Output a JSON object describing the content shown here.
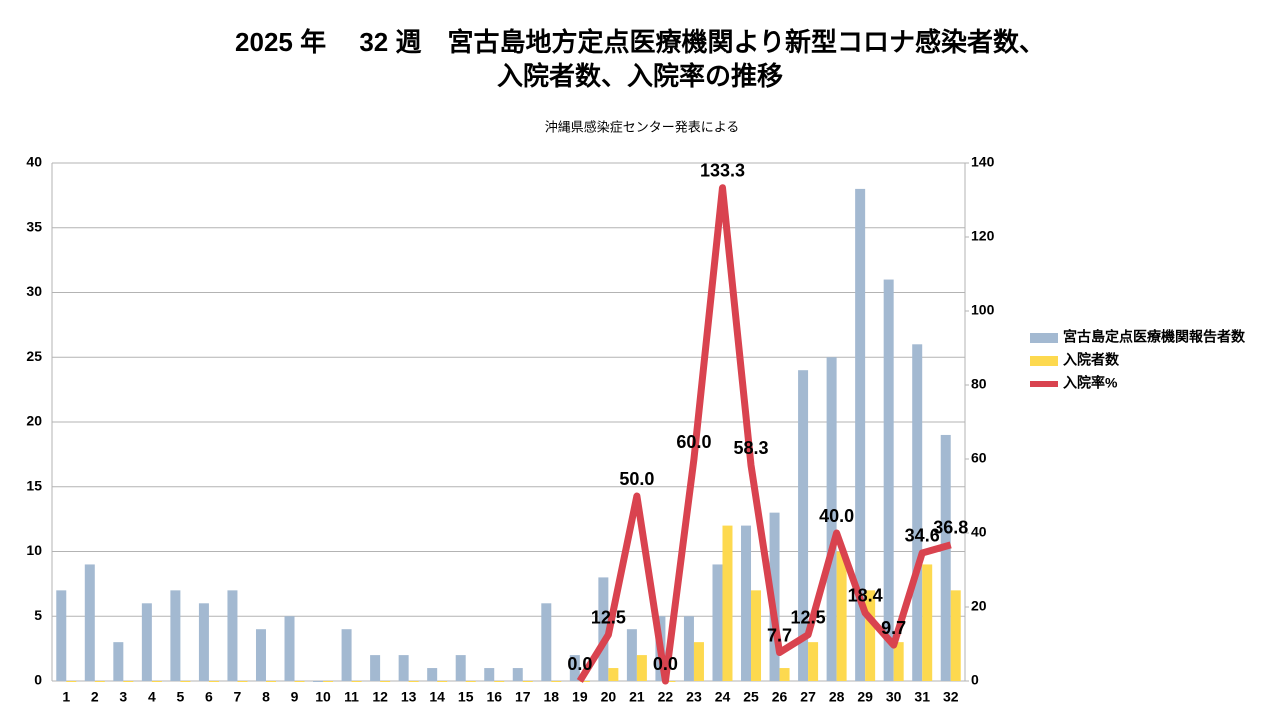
{
  "chart_data": {
    "type": "bar_line",
    "title": [
      "2025 年　 32 週　宮古島地方定点医療機関より新型コロナ感染者数、",
      "入院者数、入院率の推移"
    ],
    "subtitle": "沖縄県感染症センター発表による",
    "categories": [
      "1",
      "2",
      "3",
      "4",
      "5",
      "6",
      "7",
      "8",
      "9",
      "10",
      "11",
      "12",
      "13",
      "14",
      "15",
      "16",
      "17",
      "18",
      "19",
      "20",
      "21",
      "22",
      "23",
      "24",
      "25",
      "26",
      "27",
      "28",
      "29",
      "30",
      "31",
      "32"
    ],
    "series": [
      {
        "name": "宮古島定点医療機関報告者数",
        "color": "#a3b9d1",
        "kind": "bar",
        "values": [
          7,
          9,
          3,
          6,
          7,
          6,
          7,
          4,
          5,
          0,
          4,
          2,
          2,
          1,
          2,
          1,
          1,
          6,
          2,
          8,
          4,
          5,
          5,
          9,
          12,
          13,
          24,
          25,
          38,
          31,
          26,
          19
        ]
      },
      {
        "name": "入院者数",
        "color": "#fdd94f",
        "kind": "bar",
        "values": [
          0,
          0,
          0,
          0,
          0,
          0,
          0,
          0,
          0,
          0,
          0,
          0,
          0,
          0,
          0,
          0,
          0,
          0,
          0,
          1,
          2,
          0,
          3,
          12,
          7,
          1,
          3,
          10,
          7,
          3,
          9,
          7
        ]
      },
      {
        "name": "入院率%",
        "color": "#d9434f",
        "kind": "line",
        "axis": "y2",
        "values": [
          null,
          null,
          null,
          null,
          null,
          null,
          null,
          null,
          null,
          null,
          null,
          null,
          null,
          null,
          null,
          null,
          null,
          null,
          0,
          12.5,
          50,
          0,
          60,
          133.3,
          58.3,
          7.7,
          12.5,
          40,
          18.4,
          9.7,
          34.6,
          36.8
        ],
        "value_labels": [
          null,
          null,
          null,
          null,
          null,
          null,
          null,
          null,
          null,
          null,
          null,
          null,
          null,
          null,
          null,
          null,
          null,
          null,
          "0.0",
          "12.5",
          "50.0",
          "0.0",
          "60.0",
          "133.3",
          "58.3",
          "7.7",
          "12.5",
          "40.0",
          "18.4",
          "9.7",
          "34.6",
          "36.8"
        ]
      }
    ],
    "ylim": [
      0,
      40
    ],
    "yticks": [
      0,
      5,
      10,
      15,
      20,
      25,
      30,
      35,
      40
    ],
    "y2lim": [
      0,
      140
    ],
    "y2ticks": [
      0,
      20,
      40,
      60,
      80,
      100,
      120,
      140
    ],
    "grid": true,
    "legend": "right"
  }
}
